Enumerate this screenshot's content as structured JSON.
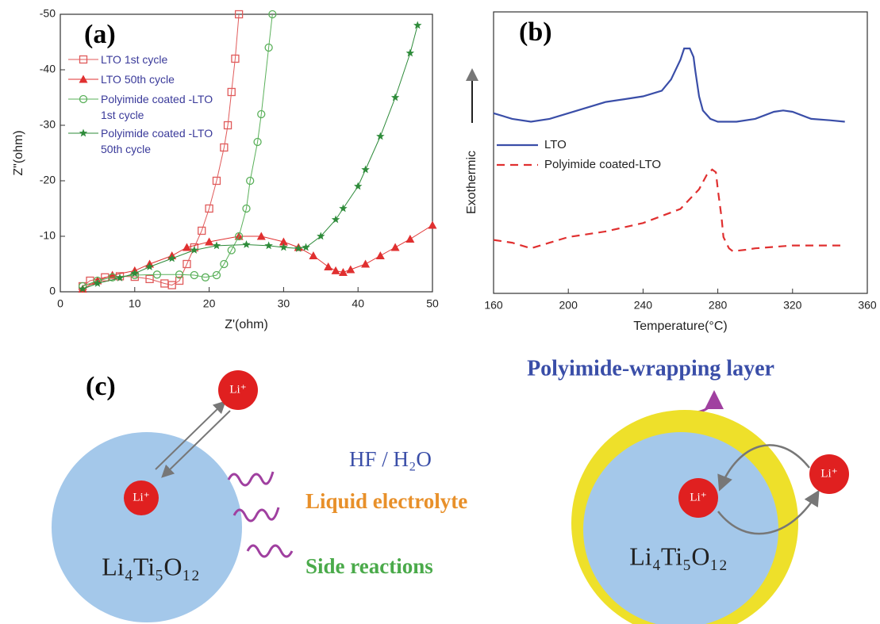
{
  "chart_data": [
    {
      "type": "line",
      "panel": "(a)",
      "x_label": "Z'(ohm)",
      "y_label": "Z\"(ohm)",
      "xlim": [
        0,
        50
      ],
      "xticks": [
        0,
        10,
        20,
        30,
        40,
        50
      ],
      "ylim": [
        0,
        -50
      ],
      "yticks": [
        0,
        -10,
        -20,
        -30,
        -40,
        -50
      ],
      "legend": "upper left",
      "series": [
        {
          "name": "LTO  1st cycle",
          "color": "#e05a5a",
          "marker": "square-open",
          "x": [
            3,
            4,
            6,
            8,
            10,
            12,
            14,
            15,
            16,
            17,
            18,
            19,
            20,
            21,
            22,
            22.5,
            23,
            23.5,
            24
          ],
          "values": [
            -1,
            -2,
            -2.6,
            -2.8,
            -2.7,
            -2.3,
            -1.5,
            -1.2,
            -2,
            -5,
            -8,
            -11,
            -15,
            -20,
            -26,
            -30,
            -36,
            -42,
            -50
          ]
        },
        {
          "name": "LTO  50th cycle",
          "color": "#e03030",
          "marker": "triangle",
          "x": [
            3,
            5,
            7,
            10,
            12,
            15,
            17,
            20,
            24,
            27,
            30,
            32,
            34,
            36,
            37,
            38,
            39,
            41,
            43,
            45,
            47,
            50
          ],
          "values": [
            -0.5,
            -2,
            -3,
            -3.8,
            -5,
            -6.5,
            -8,
            -9,
            -10,
            -10,
            -9,
            -8,
            -6.5,
            -4.5,
            -3.8,
            -3.5,
            -4,
            -5,
            -6.5,
            -8,
            -9.5,
            -12
          ]
        },
        {
          "name": "Polyimide coated -LTO 1st cycle",
          "color": "#5ab05a",
          "marker": "circle-open",
          "x": [
            3,
            5,
            7,
            10,
            13,
            16,
            18,
            19.5,
            21,
            22,
            23,
            24,
            25,
            25.5,
            26.5,
            27,
            28,
            28.5
          ],
          "values": [
            -1,
            -2,
            -2.6,
            -3,
            -3.1,
            -3.1,
            -3,
            -2.6,
            -3,
            -5,
            -7.5,
            -10,
            -15,
            -20,
            -27,
            -32,
            -44,
            -50
          ]
        },
        {
          "name": "Polyimide coated -LTO 50th cycle",
          "color": "#2e8b3a",
          "marker": "star",
          "x": [
            3,
            5,
            8,
            10,
            12,
            15,
            18,
            21,
            25,
            28,
            30,
            32,
            33,
            35,
            37,
            38,
            40,
            41,
            43,
            45,
            47,
            48
          ],
          "values": [
            -0.5,
            -1.5,
            -2.5,
            -3.3,
            -4.5,
            -6,
            -7.5,
            -8.3,
            -8.5,
            -8.3,
            -8,
            -7.8,
            -8,
            -10,
            -13,
            -15,
            -19,
            -22,
            -28,
            -35,
            -43,
            -48
          ]
        }
      ]
    },
    {
      "type": "line",
      "panel": "(b)",
      "x_label": "Temperature(°C)",
      "y_label": "Exothermic",
      "xlim": [
        160,
        360
      ],
      "xticks": [
        160,
        200,
        240,
        280,
        320,
        360
      ],
      "ylim": [
        0,
        100
      ],
      "legend": "center left",
      "series": [
        {
          "name": "LTO",
          "color": "#3a4ea8",
          "dash": false,
          "x": [
            160,
            170,
            180,
            190,
            200,
            210,
            220,
            230,
            240,
            250,
            255,
            260,
            262,
            265,
            267,
            268,
            270,
            272,
            276,
            280,
            290,
            300,
            310,
            315,
            320,
            330,
            340,
            348
          ],
          "values": [
            64,
            62,
            61,
            62,
            64,
            66,
            68,
            69,
            70,
            72,
            76,
            83,
            87,
            87,
            84,
            79,
            70,
            65,
            62,
            61,
            61,
            62,
            64.5,
            65,
            64.5,
            62,
            61.5,
            61
          ]
        },
        {
          "name": "Polyimide coated-LTO",
          "color": "#e03030",
          "dash": true,
          "x": [
            160,
            170,
            180,
            190,
            200,
            220,
            240,
            260,
            270,
            274,
            277,
            279,
            280,
            282,
            283,
            286,
            288,
            295,
            300,
            320,
            348
          ],
          "values": [
            19,
            18,
            16,
            18,
            20,
            22,
            25,
            30,
            37,
            42,
            44,
            43,
            37,
            27,
            20,
            16,
            15,
            15.5,
            16,
            17,
            17
          ]
        }
      ]
    }
  ],
  "diagram": {
    "panel": "(c)",
    "ions": [
      "Li⁺",
      "Li⁺",
      "Li⁺",
      "Li⁺"
    ],
    "hazard": "HF / H₂O",
    "electrolyte": "Liquid electrolyte",
    "side": "Side reactions",
    "particles": [
      "Li₄Ti₅O₁₂",
      "Li₄Ti₅O₁₂"
    ],
    "layer": "Polyimide-wrapping layer"
  }
}
